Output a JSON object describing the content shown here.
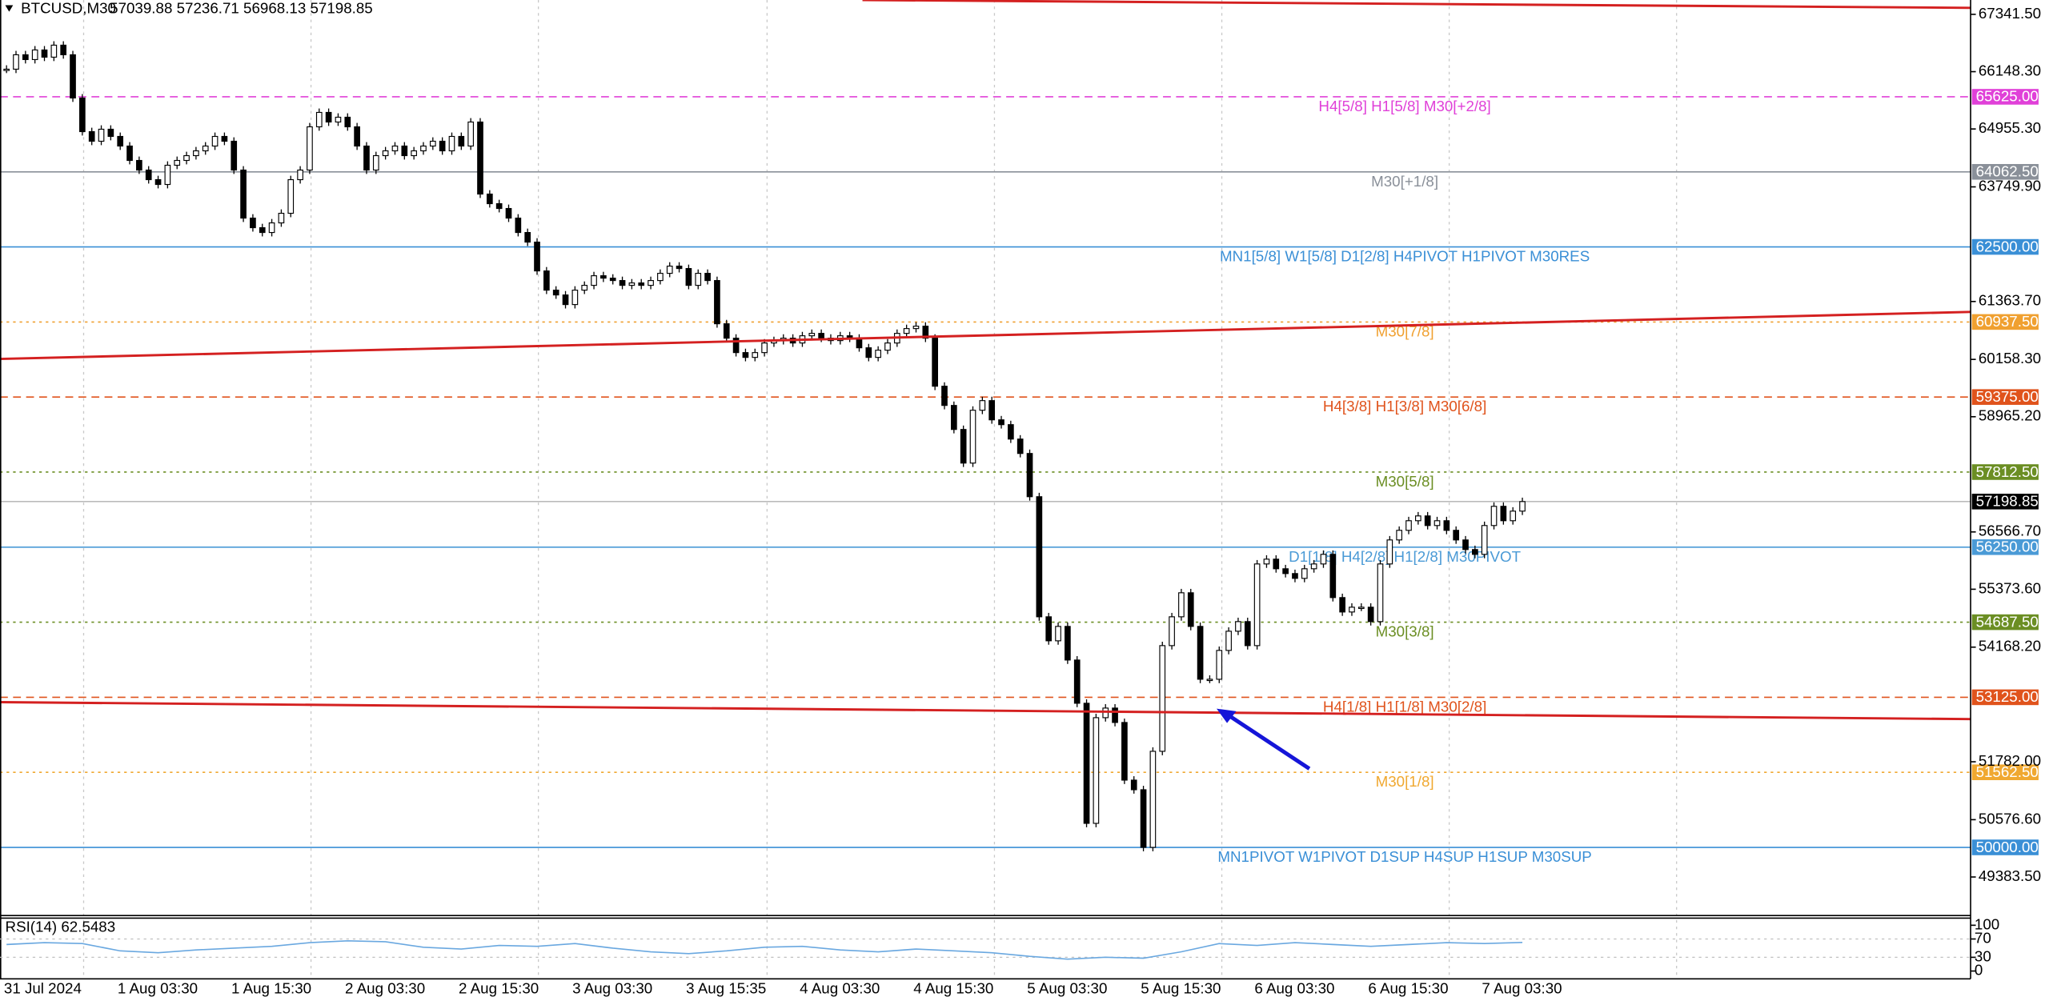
{
  "chart_data": {
    "type": "candlestick",
    "title": "BTCUSD,M30",
    "ohlc_header": "57039.88 57236.71 56968.13 57198.85",
    "categories": [
      "31 Jul 2024",
      null,
      null,
      null,
      null,
      null,
      null,
      null,
      null,
      null,
      null,
      null,
      "1 Aug 03:30",
      null,
      null,
      null,
      null,
      null,
      null,
      null,
      null,
      null,
      null,
      null,
      "1 Aug 15:30",
      null,
      null,
      null,
      null,
      null,
      null,
      null,
      null,
      null,
      null,
      null,
      "2 Aug 03:30",
      null,
      null,
      null,
      null,
      null,
      null,
      null,
      null,
      null,
      null,
      null,
      "2 Aug 15:30",
      null,
      null,
      null,
      null,
      null,
      null,
      null,
      null,
      null,
      null,
      null,
      "3 Aug 03:30",
      null,
      null,
      null,
      null,
      null,
      null,
      null,
      null,
      null,
      null,
      null,
      "3 Aug 15:35",
      null,
      null,
      null,
      null,
      null,
      null,
      null,
      null,
      null,
      null,
      null,
      "4 Aug 03:30",
      null,
      null,
      null,
      null,
      null,
      null,
      null,
      null,
      null,
      null,
      null,
      "4 Aug 15:30",
      null,
      null,
      null,
      null,
      null,
      null,
      null,
      null,
      null,
      null,
      null,
      "5 Aug 03:30",
      null,
      null,
      null,
      null,
      null,
      null,
      null,
      null,
      null,
      null,
      null,
      "5 Aug 15:30",
      null,
      null,
      null,
      null,
      null,
      null,
      null,
      null,
      null,
      null,
      null,
      "6 Aug 03:30",
      null,
      null,
      null,
      null,
      null,
      null,
      null,
      null,
      null,
      null,
      null,
      "6 Aug 15:30",
      null,
      null,
      null,
      null,
      null,
      null,
      null,
      null,
      null,
      null,
      null,
      "7 Aug 03:30",
      null,
      null,
      null,
      null
    ],
    "values": [
      66200,
      66500,
      66400,
      66600,
      66450,
      66700,
      66500,
      65600,
      64900,
      64700,
      64950,
      64800,
      64600,
      64300,
      64100,
      63900,
      63800,
      64200,
      64300,
      64400,
      64500,
      64600,
      64800,
      64700,
      64100,
      63100,
      62900,
      62800,
      63000,
      63200,
      63900,
      64100,
      65000,
      65300,
      65100,
      65200,
      65000,
      64600,
      64100,
      64400,
      64500,
      64600,
      64400,
      64500,
      64600,
      64700,
      64500,
      64800,
      64600,
      65100,
      63600,
      63400,
      63300,
      63100,
      62800,
      62600,
      62000,
      61600,
      61500,
      61300,
      61600,
      61700,
      61900,
      61850,
      61800,
      61700,
      61750,
      61700,
      61800,
      61950,
      62100,
      62050,
      61700,
      61950,
      61800,
      60900,
      60600,
      60300,
      60200,
      60300,
      60500,
      60550,
      60600,
      60500,
      60650,
      60700,
      60600,
      60550,
      60650,
      60600,
      60400,
      60200,
      60350,
      60500,
      60700,
      60800,
      60850,
      60600,
      59600,
      59200,
      58700,
      58000,
      59100,
      59300,
      58900,
      58800,
      58500,
      58200,
      57300,
      54800,
      54300,
      54600,
      53900,
      53000,
      50500,
      52700,
      52900,
      52600,
      51400,
      51200,
      50000,
      52000,
      54200,
      54800,
      55300,
      54600,
      53500,
      53500,
      54100,
      54500,
      54700,
      54200,
      55900,
      56000,
      55800,
      55700,
      55600,
      55800,
      55900,
      56100,
      55200,
      54900,
      55000,
      55000,
      54700,
      55900,
      56400,
      56600,
      56800,
      56900,
      56700,
      56800,
      56600,
      56400,
      56200,
      56100,
      56700,
      57100,
      56800,
      57000,
      57198.85
    ],
    "ylim": [
      48595,
      67640
    ],
    "yticks": [
      {
        "value": 67341.5,
        "label": "67341.50"
      },
      {
        "value": 66148.3,
        "label": "66148.30"
      },
      {
        "value": 64955.3,
        "label": "64955.30"
      },
      {
        "value": 63749.9,
        "label": "63749.90"
      },
      {
        "value": 61363.7,
        "label": "61363.70"
      },
      {
        "value": 60158.3,
        "label": "60158.30"
      },
      {
        "value": 58965.2,
        "label": "58965.20"
      },
      {
        "value": 56566.7,
        "label": "56566.70"
      },
      {
        "value": 55373.6,
        "label": "55373.60"
      },
      {
        "value": 54168.2,
        "label": "54168.20"
      },
      {
        "value": 51782,
        "label": "51782.00"
      },
      {
        "value": 50576.6,
        "label": "50576.60"
      },
      {
        "value": 49383.5,
        "label": "49383.50"
      }
    ],
    "levels": {
      "names": [
        "H4[5/8] H1[5/8] M30[+2/8]",
        "M30[+1/8]",
        "MN1[5/8] W1[5/8] D1[2/8] H4PIVOT H1PIVOT M30RES",
        "M30[7/8]",
        "H4[3/8] H1[3/8] M30[6/8]",
        "M30[5/8]",
        "D1[1/8] H4[2/8] H1[2/8] M30PIVOT",
        "M30[3/8]",
        "H4[1/8] H1[1/8] M30[2/8]",
        "M30[1/8]",
        "MN1PIVOT W1PIVOT D1SUP H4SUP H1SUP M30SUP"
      ],
      "values": [
        65625,
        64062.5,
        62500,
        60937.5,
        59375,
        57812.5,
        56250,
        54687.5,
        53125,
        51562.5,
        50000
      ],
      "value_labels": [
        "65625.00",
        "64062.50",
        "62500.00",
        "60937.50",
        "59375.00",
        "57812.50",
        "56250.00",
        "54687.50",
        "53125.00",
        "51562.50",
        "50000.00"
      ],
      "colors": [
        "#e040d8",
        "#8a9099",
        "#3a8fd6",
        "#f0a030",
        "#e0531c",
        "#6b8e23",
        "#4a9ad6",
        "#6b8e23",
        "#e0531c",
        "#f0a830",
        "#3a8fd6"
      ],
      "styles": [
        "dashed",
        "solid",
        "solid",
        "dotted",
        "dashed",
        "dotted",
        "solid",
        "dotted",
        "dashed",
        "dotted",
        "solid"
      ]
    },
    "current_price": 57198.85,
    "rsi": {
      "title": "RSI(14) 62.5483",
      "values": [
        58,
        62,
        60,
        44,
        40,
        46,
        50,
        54,
        62,
        66,
        64,
        52,
        48,
        56,
        54,
        60,
        50,
        42,
        38,
        44,
        52,
        54,
        46,
        42,
        48,
        44,
        40,
        32,
        26,
        30,
        28,
        42,
        60,
        56,
        62,
        58,
        54,
        58,
        62,
        60,
        62.5483
      ],
      "color": "#6aa8e0",
      "ylim": [
        -17,
        117
      ],
      "yticks": [
        0,
        30,
        70,
        100
      ],
      "levels": [
        30,
        70
      ]
    }
  }
}
